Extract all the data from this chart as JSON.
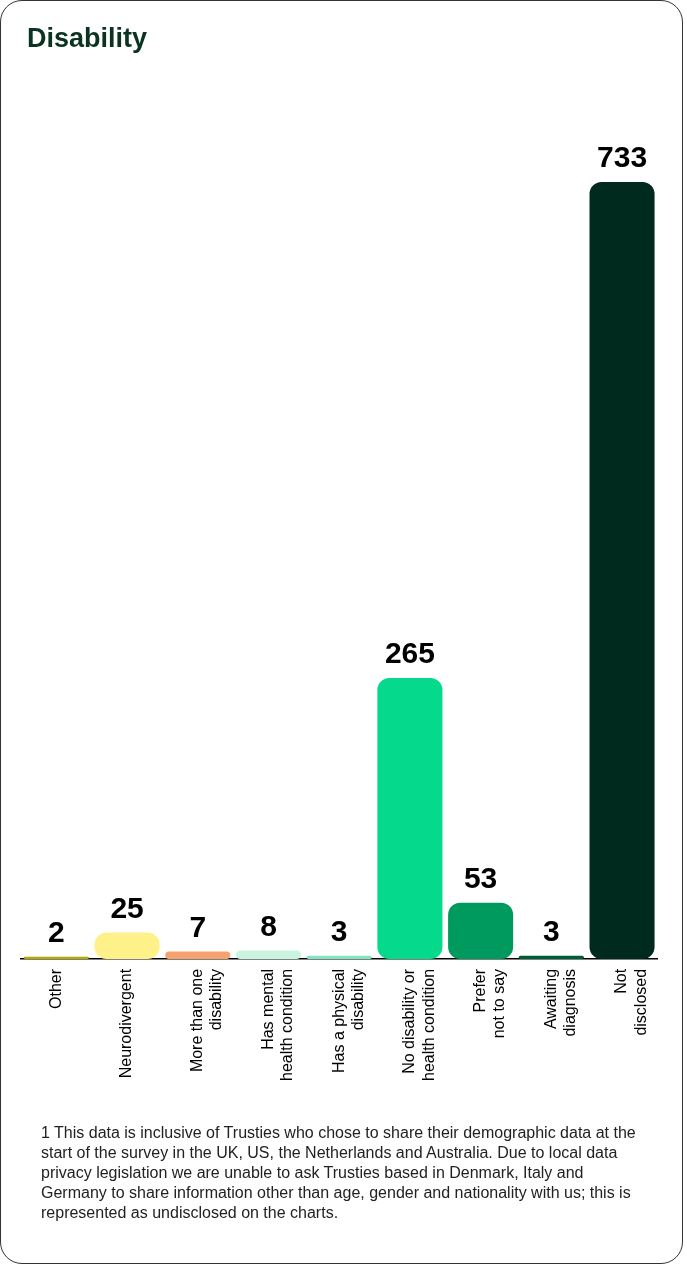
{
  "chart_data": {
    "type": "bar",
    "title": "Disability",
    "categories": [
      "Other",
      "Neurodivergent",
      "More than one\ndisability",
      "Has mental\nhealth condition",
      "Has a physical\ndisability",
      "No disability or\nhealth condition",
      "Prefer\nnot to say",
      "Awaiting\ndiagnosis",
      "Not\ndisclosed"
    ],
    "values": [
      2,
      25,
      7,
      8,
      3,
      265,
      53,
      3,
      733
    ],
    "colors": [
      "#b5a800",
      "#fff18a",
      "#f5a26e",
      "#c9f5e0",
      "#86e3c0",
      "#05d98c",
      "#019a5e",
      "#005c35",
      "#002a1e"
    ],
    "data_labels": true,
    "grid": false,
    "legend": false,
    "annotations": [
      "1   This data is inclusive of Trusties who chose to share their demographic data at the start of the survey in the UK, US, the Netherlands and Australia. Due to local data privacy legislation we are unable to ask Trusties based in Denmark, Italy and Germany to share information other than age, gender and nationality with us; this is represented as undisclosed on the charts."
    ]
  }
}
